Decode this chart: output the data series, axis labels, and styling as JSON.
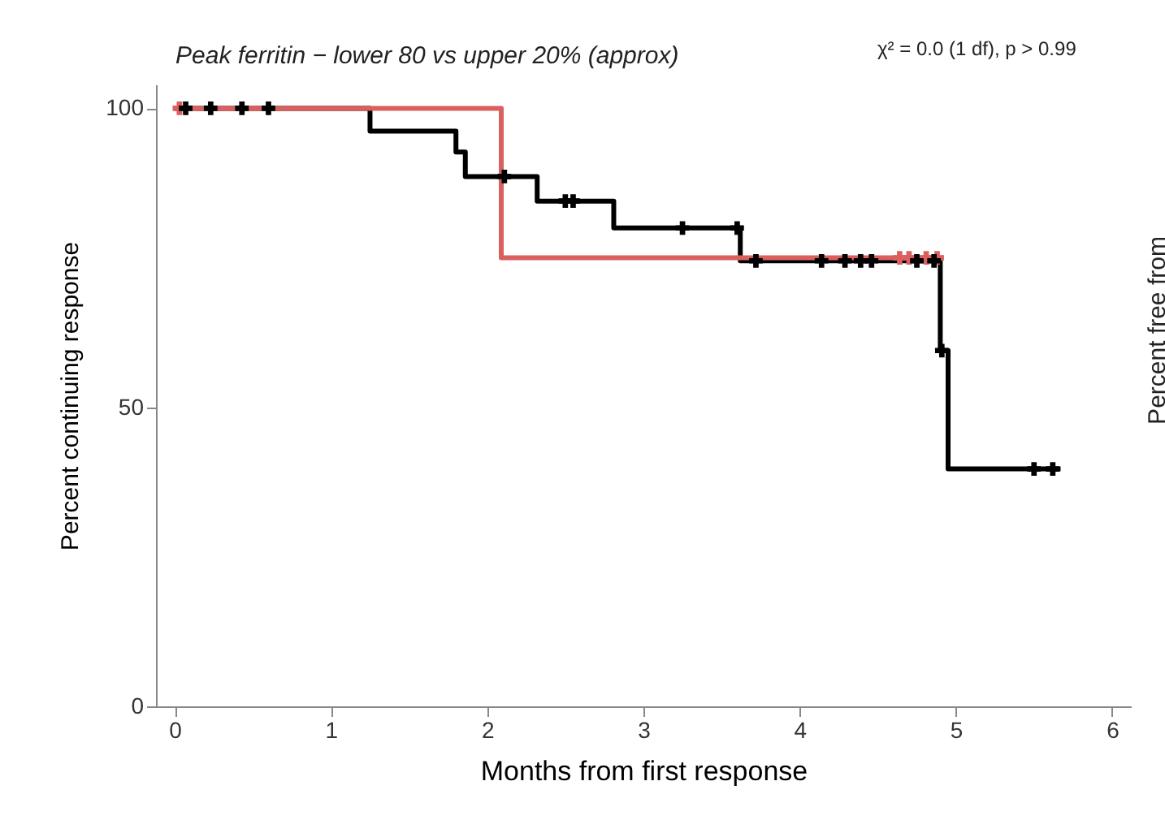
{
  "chart_data": {
    "type": "step",
    "title": "Peak ferritin − lower 80 vs upper 20% (approx)",
    "xlabel": "Months from first response",
    "ylabel": "Percent continuing response",
    "annotations": [
      "χ² = 0.0 (1 df), p > 0.99",
      "Percent free from"
    ],
    "xlim": [
      -0.12,
      6.12
    ],
    "xticks": [
      0,
      1,
      2,
      3,
      4,
      5,
      6
    ],
    "ylim": [
      0,
      104
    ],
    "yticks": [
      0,
      50,
      100
    ],
    "grid": false,
    "line_style": "solid",
    "series": [
      {
        "color": "#000000",
        "x": [
          0,
          1.25,
          1.8,
          1.86,
          2.32,
          2.81,
          3.62,
          4.9,
          4.95,
          5.67
        ],
        "values": [
          100,
          96.2,
          92.7,
          88.6,
          84.5,
          80,
          74.5,
          59.5,
          39.7,
          39.7
        ]
      },
      {
        "color": "#d9605f",
        "x": [
          0,
          2.09,
          4.92
        ],
        "values": [
          100,
          75,
          75
        ]
      },
      {
        "type": "scatter",
        "marker": "cross",
        "color": "#000000",
        "x": [
          0.07,
          0.23,
          0.43,
          0.6,
          2.11,
          2.5,
          2.55,
          3.25,
          3.6,
          3.72,
          4.14,
          4.29,
          4.39,
          4.46,
          4.75,
          4.86,
          4.91,
          5.5,
          5.62
        ],
        "values": [
          100,
          100,
          100,
          100,
          88.6,
          84.5,
          84.5,
          80,
          80,
          74.5,
          74.5,
          74.5,
          74.5,
          74.5,
          74.5,
          74.5,
          59.5,
          39.7,
          39.7
        ]
      },
      {
        "type": "scatter",
        "marker": "cross",
        "color": "#d9605f",
        "x": [
          0.03,
          4.64,
          4.7,
          4.81,
          4.88
        ],
        "values": [
          100,
          75,
          75,
          75,
          75
        ]
      }
    ]
  }
}
